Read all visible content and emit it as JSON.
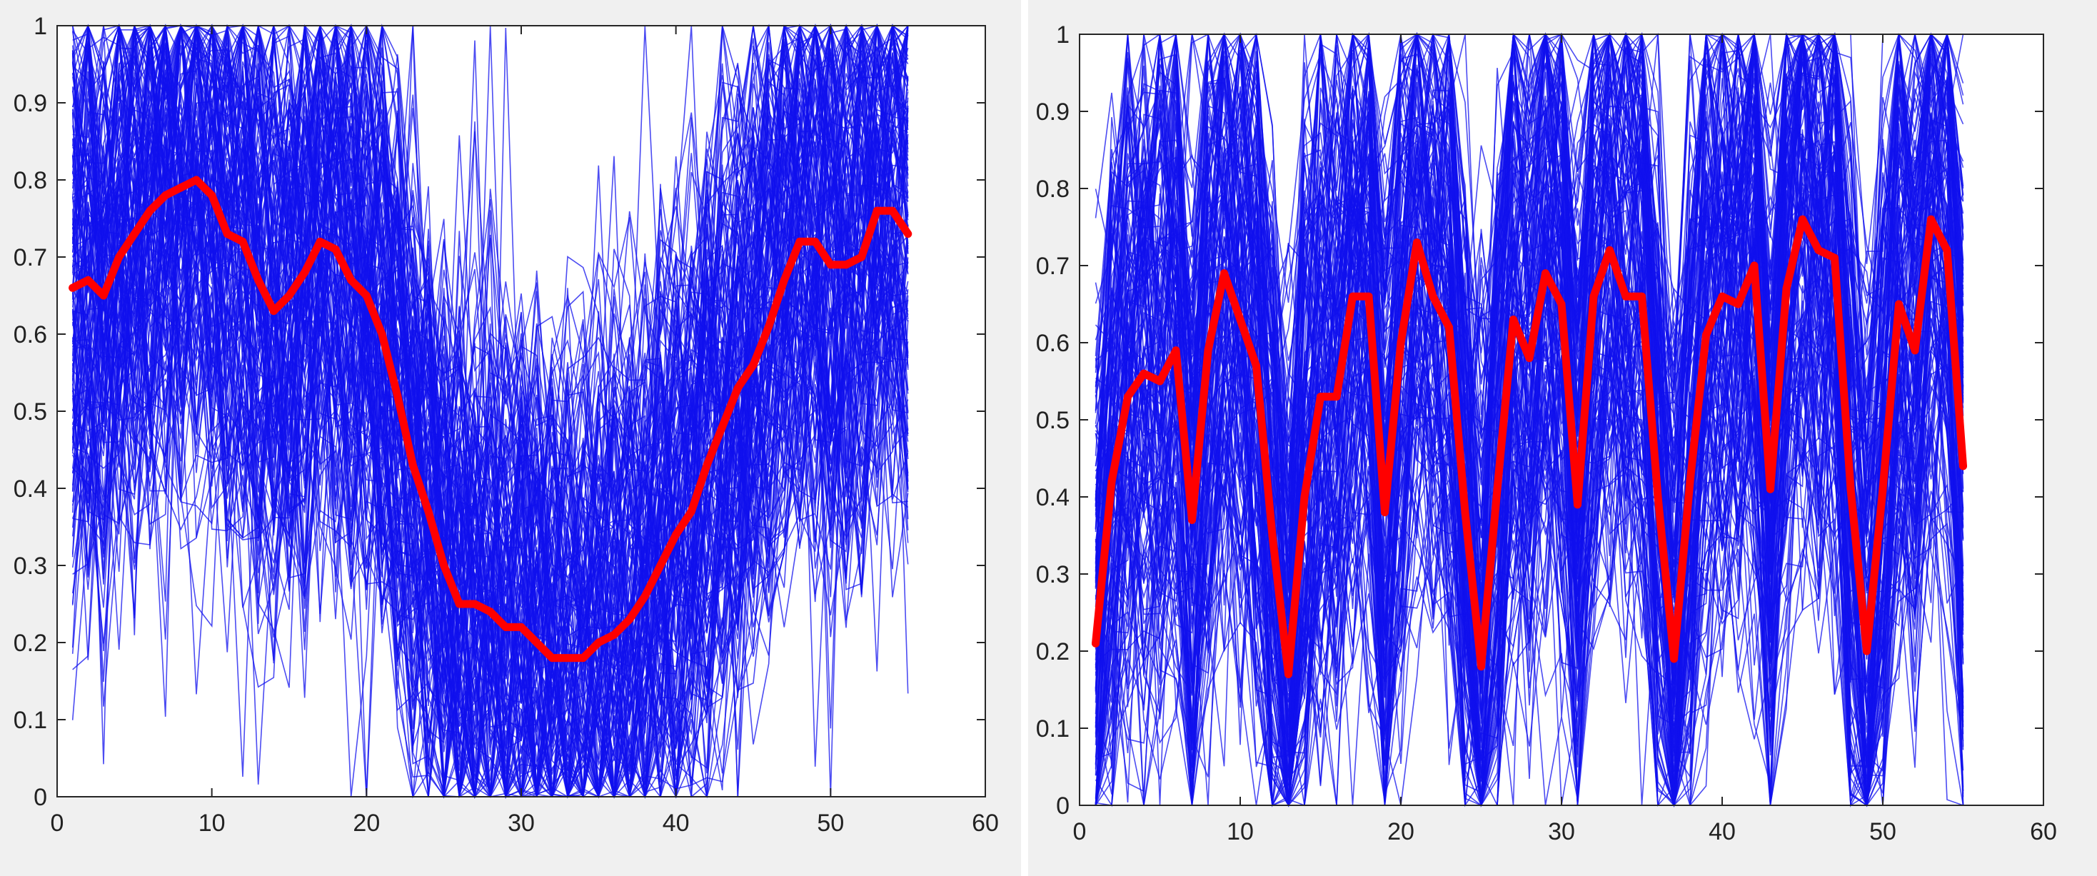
{
  "chart_data": [
    {
      "type": "line",
      "title": "",
      "xlabel": "",
      "ylabel": "",
      "xlim": [
        0,
        60
      ],
      "ylim": [
        0,
        1
      ],
      "xticks": [
        0,
        10,
        20,
        30,
        40,
        50,
        60
      ],
      "yticks": [
        0,
        0.1,
        0.2,
        0.3,
        0.4,
        0.5,
        0.6,
        0.7,
        0.8,
        0.9,
        1
      ],
      "grid": false,
      "legend": "none",
      "ensemble": {
        "description": "many overlapping thin blue sample curves around the mean",
        "color": "#1010ee",
        "x_range": [
          1,
          55
        ],
        "spread": 0.3
      },
      "series": [
        {
          "color": "#ff0000",
          "x": [
            1,
            2,
            3,
            4,
            5,
            6,
            7,
            8,
            9,
            10,
            11,
            12,
            13,
            14,
            15,
            16,
            17,
            18,
            19,
            20,
            21,
            22,
            23,
            24,
            25,
            26,
            27,
            28,
            29,
            30,
            31,
            32,
            33,
            34,
            35,
            36,
            37,
            38,
            39,
            40,
            41,
            42,
            43,
            44,
            45,
            46,
            47,
            48,
            49,
            50,
            51,
            52,
            53,
            54,
            55
          ],
          "values": [
            0.66,
            0.67,
            0.65,
            0.7,
            0.73,
            0.76,
            0.78,
            0.79,
            0.8,
            0.78,
            0.73,
            0.72,
            0.67,
            0.63,
            0.65,
            0.68,
            0.72,
            0.71,
            0.67,
            0.65,
            0.6,
            0.52,
            0.43,
            0.37,
            0.3,
            0.25,
            0.25,
            0.24,
            0.22,
            0.22,
            0.2,
            0.18,
            0.18,
            0.18,
            0.2,
            0.21,
            0.23,
            0.26,
            0.3,
            0.34,
            0.37,
            0.43,
            0.48,
            0.53,
            0.56,
            0.61,
            0.67,
            0.72,
            0.72,
            0.69,
            0.69,
            0.7,
            0.76,
            0.76,
            0.73
          ]
        }
      ]
    },
    {
      "type": "line",
      "title": "",
      "xlabel": "",
      "ylabel": "",
      "xlim": [
        0,
        60
      ],
      "ylim": [
        0,
        1
      ],
      "xticks": [
        0,
        10,
        20,
        30,
        40,
        50,
        60
      ],
      "yticks": [
        0,
        0.1,
        0.2,
        0.3,
        0.4,
        0.5,
        0.6,
        0.7,
        0.8,
        0.9,
        1
      ],
      "grid": false,
      "legend": "none",
      "ensemble": {
        "description": "many overlapping thin blue sample curves around the mean",
        "color": "#1010ee",
        "x_range": [
          1,
          55
        ],
        "spread": 0.35
      },
      "series": [
        {
          "color": "#ff0000",
          "x": [
            1,
            2,
            3,
            4,
            5,
            6,
            7,
            8,
            9,
            10,
            11,
            12,
            13,
            14,
            15,
            16,
            17,
            18,
            19,
            20,
            21,
            22,
            23,
            24,
            25,
            26,
            27,
            28,
            29,
            30,
            31,
            32,
            33,
            34,
            35,
            36,
            37,
            38,
            39,
            40,
            41,
            42,
            43,
            44,
            45,
            46,
            47,
            48,
            49,
            50,
            51,
            52,
            53,
            54,
            55
          ],
          "values": [
            0.21,
            0.42,
            0.53,
            0.56,
            0.55,
            0.59,
            0.37,
            0.59,
            0.69,
            0.63,
            0.57,
            0.35,
            0.17,
            0.4,
            0.53,
            0.53,
            0.66,
            0.66,
            0.38,
            0.6,
            0.73,
            0.66,
            0.62,
            0.38,
            0.18,
            0.41,
            0.63,
            0.58,
            0.69,
            0.65,
            0.39,
            0.66,
            0.72,
            0.66,
            0.66,
            0.4,
            0.19,
            0.42,
            0.61,
            0.66,
            0.65,
            0.7,
            0.41,
            0.67,
            0.76,
            0.72,
            0.71,
            0.41,
            0.2,
            0.41,
            0.65,
            0.59,
            0.76,
            0.72,
            0.44
          ]
        }
      ]
    }
  ]
}
